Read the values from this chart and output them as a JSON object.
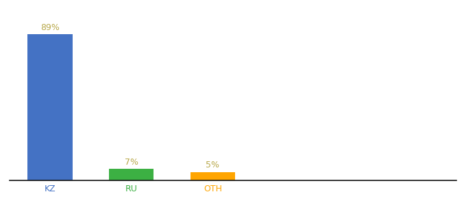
{
  "categories": [
    "KZ",
    "RU",
    "OTH"
  ],
  "values": [
    89,
    7,
    5
  ],
  "bar_colors": [
    "#4472C4",
    "#3CB043",
    "#FFA500"
  ],
  "labels": [
    "89%",
    "7%",
    "5%"
  ],
  "ylim": [
    0,
    100
  ],
  "label_color": "#b8a84a",
  "tick_label_colors": [
    "#4472C4",
    "#3CB043",
    "#FFA500"
  ],
  "background_color": "#ffffff",
  "bar_width": 0.55,
  "bar_positions": [
    0.5,
    1.5,
    2.5
  ],
  "xlim": [
    0.0,
    5.5
  ]
}
